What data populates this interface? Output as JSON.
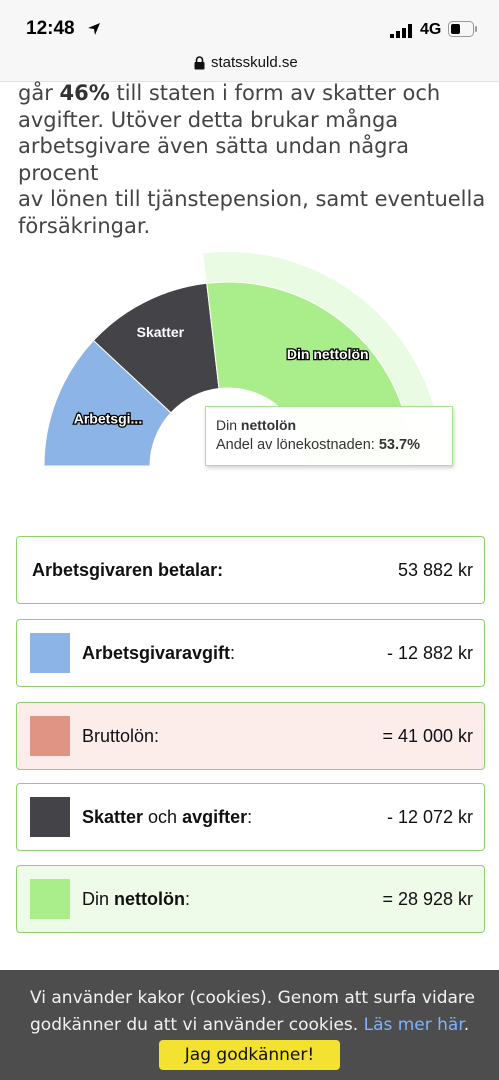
{
  "status_bar": {
    "time": "12:48",
    "network": "4G"
  },
  "url_bar": {
    "domain": "statsskuld.se"
  },
  "intro": {
    "line1_pre": "går ",
    "line1_bold": "46%",
    "line1_post": " till staten i form av skatter och",
    "line2": "avgifter. Utöver detta brukar många",
    "line3": "arbetsgivare även sätta undan några procent",
    "line4": "av lönen till tjänstepension, samt eventuella",
    "line5": "försäkringar."
  },
  "chart_data": {
    "type": "pie",
    "variant": "semi-donut",
    "title": "",
    "slices": [
      {
        "label": "Arbetsgi...",
        "full_label": "Arbetsgivaravgift",
        "value": 12882,
        "color": "#8db4e6"
      },
      {
        "label": "Skatter",
        "full_label": "Skatter och avgifter",
        "value": 12072,
        "color": "#434348"
      },
      {
        "label": "Din nettolön",
        "full_label": "Din nettolön",
        "value": 28928,
        "color": "#a9ee8b"
      }
    ],
    "tooltip": {
      "title_pre": "Din ",
      "title_bold": "nettolön",
      "text": "Andel av lönekostnaden: ",
      "value": "53.7%"
    }
  },
  "summary": {
    "employer_pays": {
      "label": "Arbetsgivaren betalar:",
      "amount": "53 882 kr"
    },
    "employer_fee": {
      "label_bold": "Arbetsgivaravgift",
      "label_rest": ":",
      "amount": "- 12 882 kr",
      "color": "#8db4e6"
    },
    "gross": {
      "label": "Bruttolön:",
      "amount": "= 41 000 kr",
      "color": "#e09483",
      "bg": "#fcecea"
    },
    "taxes": {
      "label_bold1": "Skatter",
      "label_mid": " och ",
      "label_bold2": "avgifter",
      "label_rest": ":",
      "amount": "- 12 072 kr",
      "color": "#434348"
    },
    "net": {
      "label_pre": "Din ",
      "label_bold": "nettolön",
      "label_rest": ":",
      "amount": "= 28 928 kr",
      "color": "#a9ee8b",
      "bg": "#effbe9"
    }
  },
  "cookie": {
    "text1": "Vi använder kakor (cookies). Genom att surfa vidare",
    "text2": "godkänner du att vi använder cookies. ",
    "link": "Läs mer här",
    "text2_end": ".",
    "button": "Jag godkänner!"
  }
}
